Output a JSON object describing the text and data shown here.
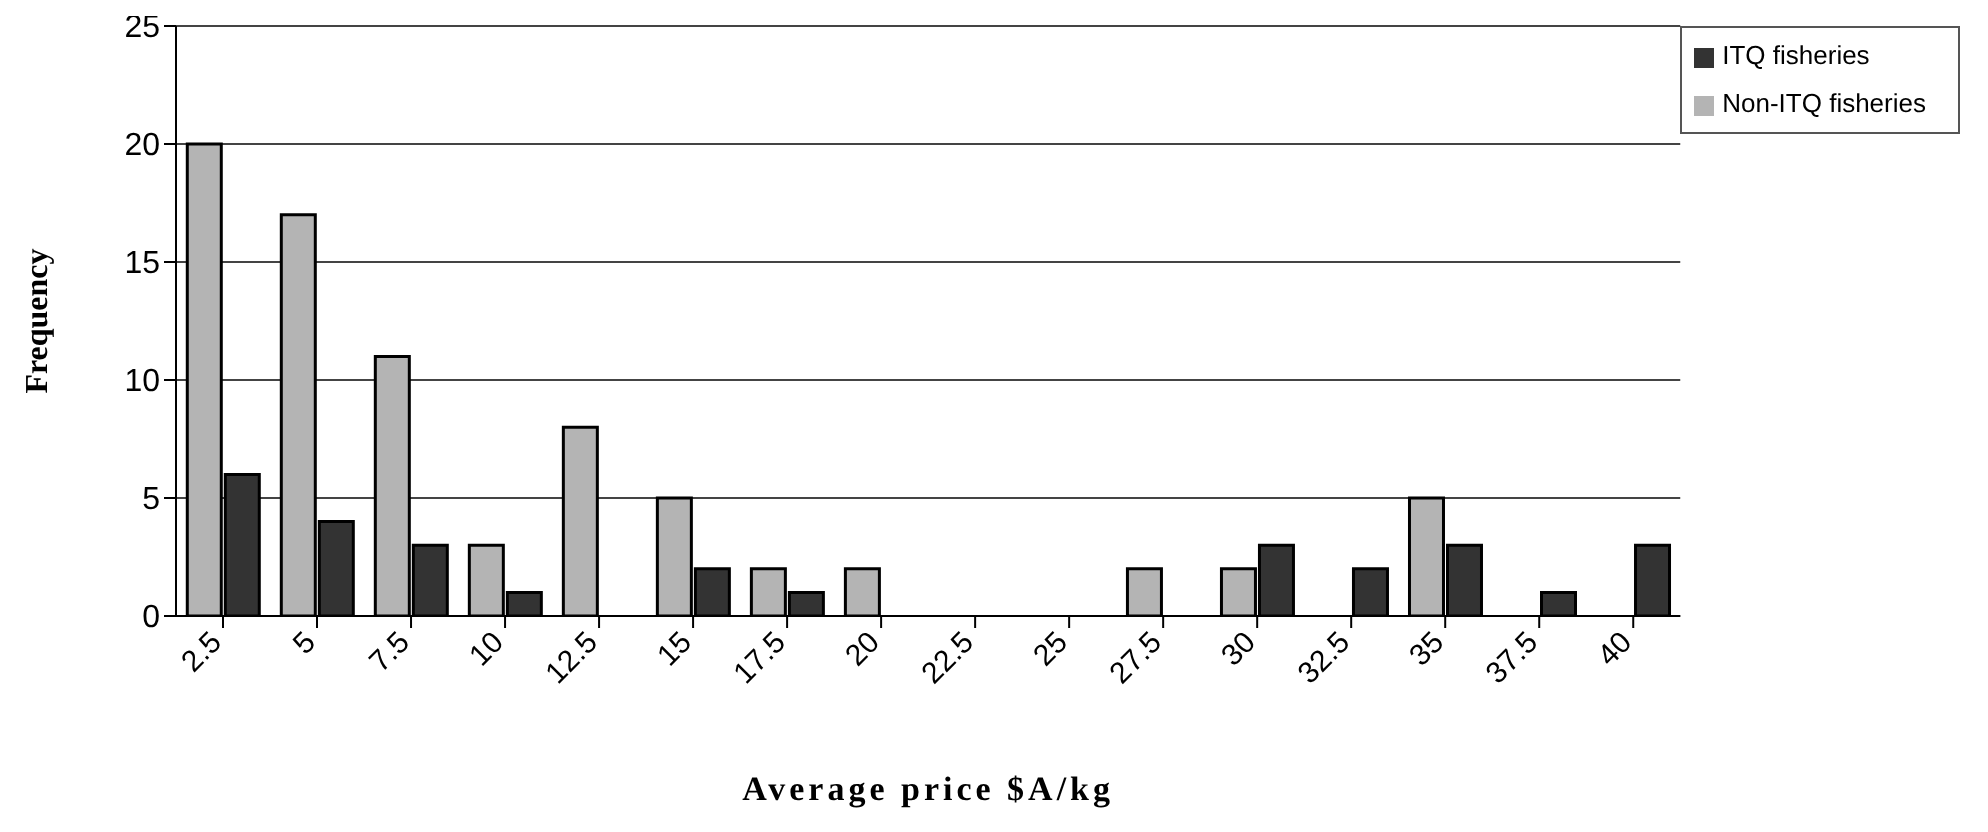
{
  "chart_data": {
    "type": "bar",
    "xlabel": "Average price $A/kg",
    "ylabel": "Frequency",
    "categories": [
      "2.5",
      "5",
      "7.5",
      "10",
      "12.5",
      "15",
      "17.5",
      "20",
      "22.5",
      "25",
      "27.5",
      "30",
      "32.5",
      "35",
      "37.5",
      "40"
    ],
    "series": [
      {
        "name": "Non-ITQ fisheries",
        "color": "#b4b4b4",
        "values": [
          20,
          17,
          11,
          3,
          8,
          5,
          2,
          2,
          0,
          0,
          2,
          2,
          0,
          5,
          0,
          0
        ]
      },
      {
        "name": "ITQ fisheries",
        "color": "#333333",
        "values": [
          6,
          4,
          3,
          1,
          0,
          2,
          1,
          0,
          0,
          0,
          0,
          3,
          2,
          3,
          1,
          3
        ]
      }
    ],
    "ylim": [
      0,
      25
    ],
    "yticks": [
      0,
      5,
      10,
      15,
      20,
      25
    ],
    "grid": "y",
    "legend": "top right"
  }
}
